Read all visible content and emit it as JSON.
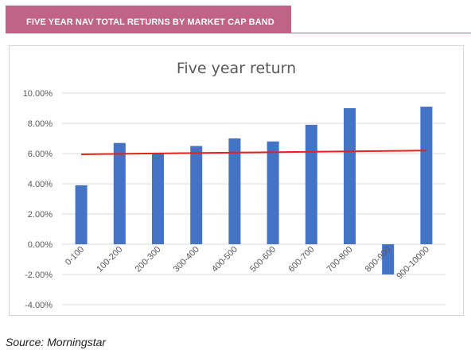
{
  "header": {
    "title": "FIVE YEAR NAV TOTAL RETURNS BY MARKET CAP BAND",
    "band_color": "#c06384",
    "title_color": "#ffffff"
  },
  "chart_data": {
    "type": "bar",
    "title": "Five year return",
    "xlabel": "",
    "ylabel": "",
    "categories": [
      "0-100",
      "100-200",
      "200-300",
      "300-400",
      "400-500",
      "500-600",
      "600-700",
      "700-800",
      "800-900",
      "900-10000"
    ],
    "series": [
      {
        "values": [
          3.9,
          6.7,
          6.0,
          6.5,
          7.0,
          6.8,
          7.9,
          9.0,
          -2.0,
          9.1
        ],
        "color": "#4472c4"
      }
    ],
    "trendline": {
      "type": "linear",
      "start": 5.95,
      "end": 6.2,
      "color": "#e8201c"
    },
    "ylim": [
      -4,
      10
    ],
    "yticks": [
      "-4.00%",
      "-2.00%",
      "0.00%",
      "2.00%",
      "4.00%",
      "6.00%",
      "8.00%",
      "10.00%"
    ],
    "grid": true,
    "legend": "none"
  },
  "source": "Source: Morningstar"
}
